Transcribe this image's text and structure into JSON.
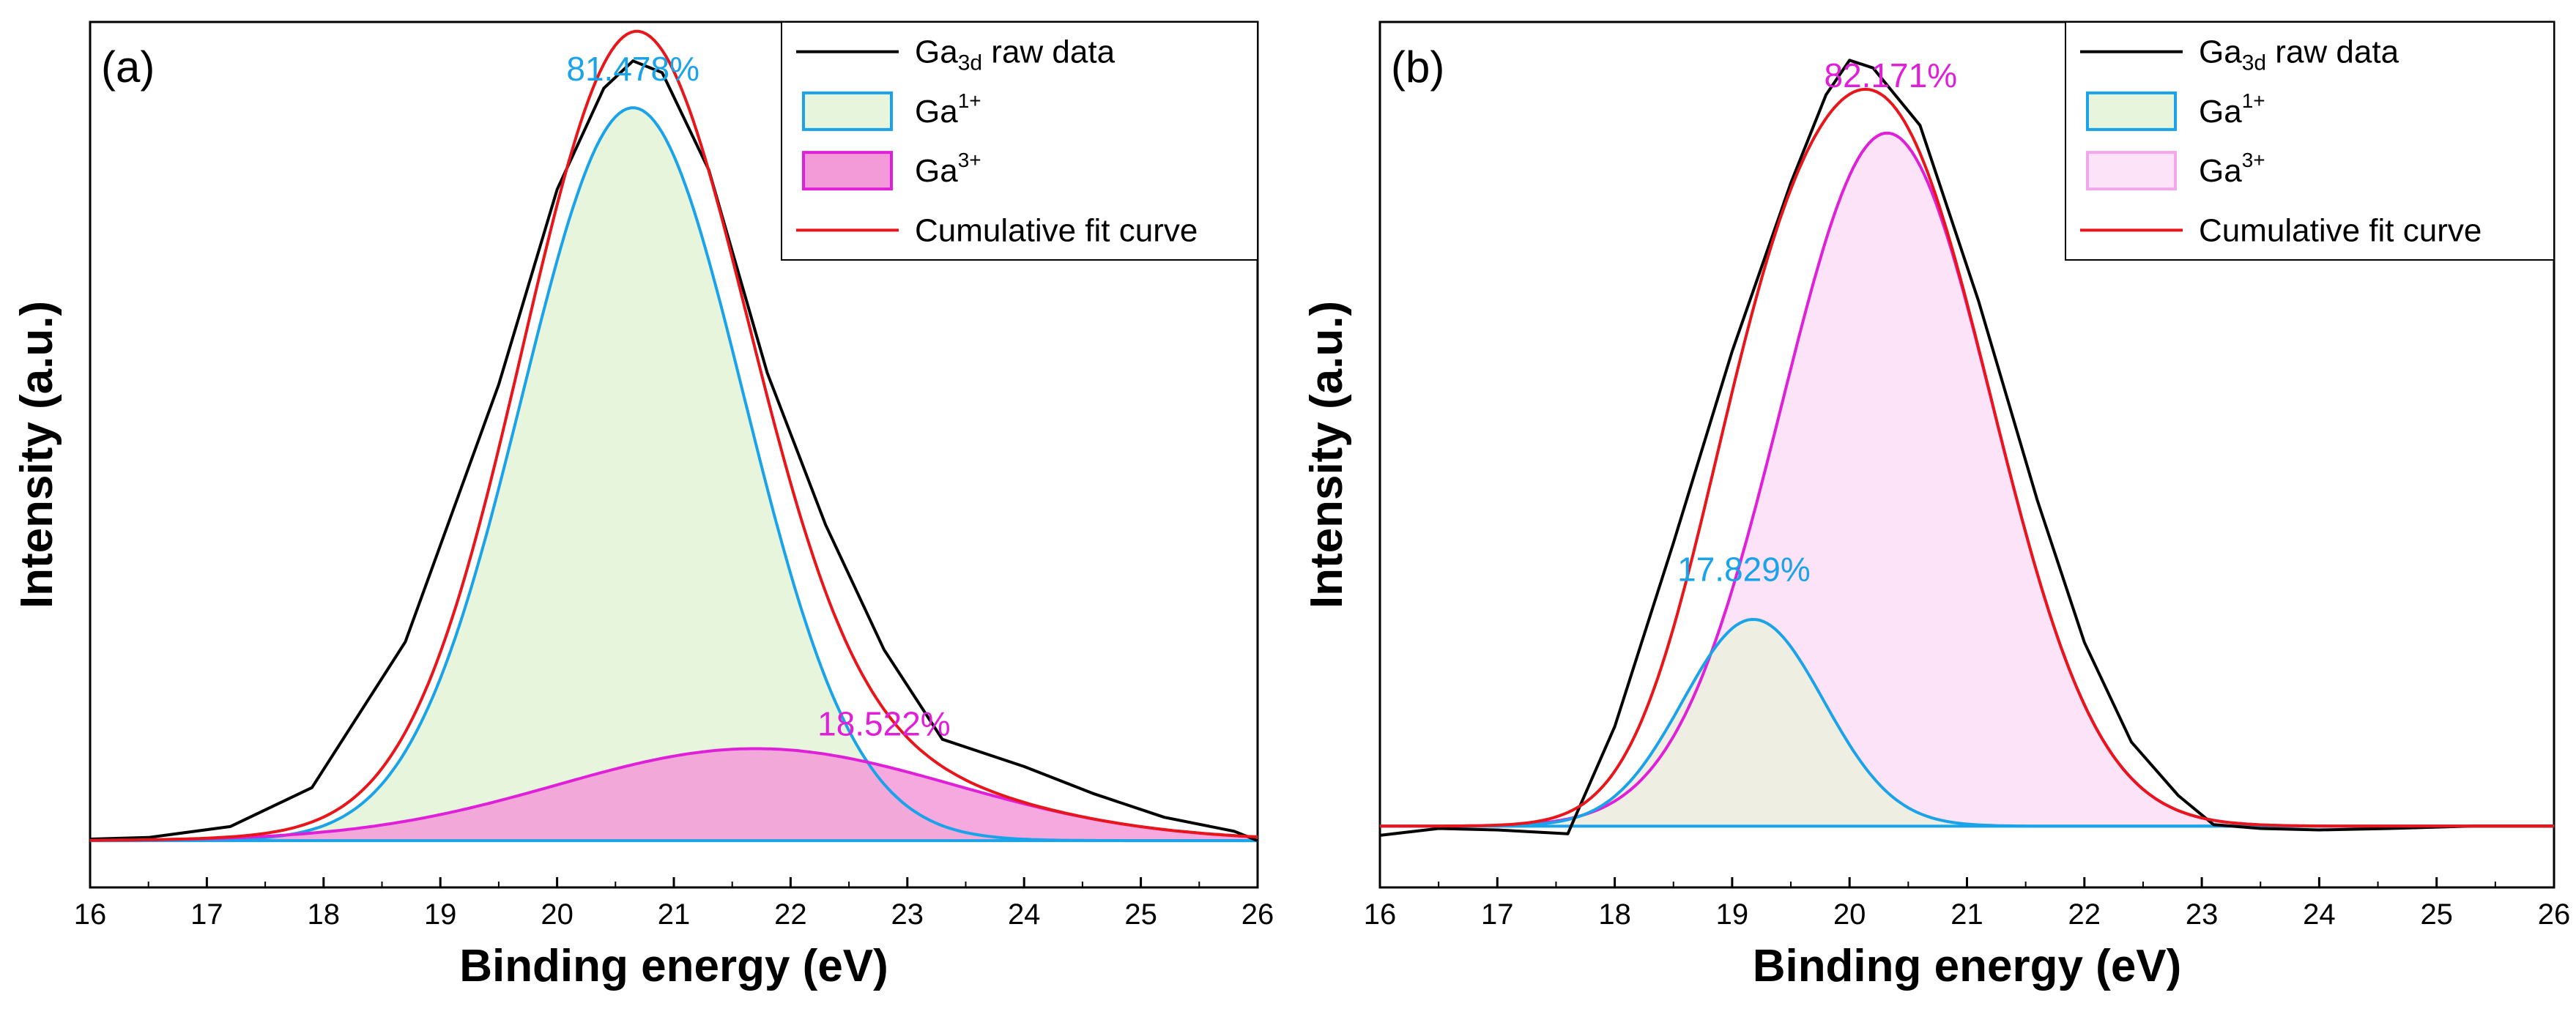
{
  "chart_data": [
    {
      "id": "a",
      "type": "line",
      "panel_label": "(a)",
      "xlabel": "Binding energy (eV)",
      "ylabel": "Intensity (a.u.)",
      "xlim": [
        16,
        26
      ],
      "ylim": [
        -0.06,
        1.05
      ],
      "xticks": [
        16,
        17,
        18,
        19,
        20,
        21,
        22,
        23,
        24,
        25,
        26
      ],
      "legend_position": "top-right",
      "legend": [
        {
          "key": "raw",
          "base": "Ga",
          "sub": "3d",
          "sup": "",
          "after": " raw data",
          "style": "line",
          "color": "#000000"
        },
        {
          "key": "ga1",
          "base": "Ga",
          "sub": "",
          "sup": "1+",
          "after": "",
          "style": "box",
          "edge": "#1aa3e8",
          "fill": "#e6f5dc"
        },
        {
          "key": "ga3",
          "base": "Ga",
          "sub": "",
          "sup": "3+",
          "after": "",
          "style": "box",
          "edge": "#e020d8",
          "fill": "#f39ad8"
        },
        {
          "key": "fit",
          "base": "Cumulative fit curve",
          "sub": "",
          "sup": "",
          "after": "",
          "style": "line",
          "color": "#e8151b"
        }
      ],
      "annotations": [
        {
          "text": "81.478%",
          "x": 20.65,
          "y": 0.975,
          "color": "#1aa3e8"
        },
        {
          "text": "18.522%",
          "x": 22.8,
          "y": 0.135,
          "color": "#e020d8"
        }
      ],
      "baseline": 0.0,
      "peaks": [
        {
          "name": "Ga1+",
          "center": 20.65,
          "height": 0.94,
          "sigma": 0.95,
          "fill": "#e6f5dc",
          "edge": "#1aa3e8",
          "fill_opacity": 1.0
        },
        {
          "name": "Ga3+",
          "center": 21.7,
          "height": 0.118,
          "sigma": 1.7,
          "fill": "#f39ad8",
          "edge": "#e020d8",
          "fill_opacity": 0.85
        }
      ],
      "series": [
        {
          "name": "Ga3d raw data",
          "color": "#000000",
          "x": [
            16.0,
            16.5,
            17.2,
            17.9,
            18.7,
            19.5,
            20.0,
            20.4,
            20.65,
            20.9,
            21.3,
            21.8,
            22.3,
            22.8,
            23.3,
            24.0,
            24.6,
            25.2,
            25.8,
            26.0
          ],
          "y": [
            0.002,
            0.004,
            0.018,
            0.068,
            0.255,
            0.585,
            0.835,
            0.965,
            1.0,
            0.985,
            0.86,
            0.6,
            0.405,
            0.245,
            0.13,
            0.095,
            0.06,
            0.03,
            0.012,
            0.0
          ]
        },
        {
          "name": "Cumulative fit curve",
          "color": "#e8151b",
          "computed": "sum_of_peaks"
        }
      ]
    },
    {
      "id": "b",
      "type": "line",
      "panel_label": "(b)",
      "xlabel": "Binding energy (eV)",
      "ylabel": "Intensity (a.u.)",
      "xlim": [
        16,
        26
      ],
      "ylim": [
        -0.08,
        1.05
      ],
      "xticks": [
        16,
        17,
        18,
        19,
        20,
        21,
        22,
        23,
        24,
        25,
        26
      ],
      "legend_position": "top-right",
      "legend": [
        {
          "key": "raw",
          "base": "Ga",
          "sub": "3d",
          "sup": "",
          "after": " raw data",
          "style": "line",
          "color": "#000000"
        },
        {
          "key": "ga1",
          "base": "Ga",
          "sub": "",
          "sup": "1+",
          "after": "",
          "style": "box",
          "edge": "#1aa3e8",
          "fill": "#e6f5dc"
        },
        {
          "key": "ga3",
          "base": "Ga",
          "sub": "",
          "sup": "3+",
          "after": "",
          "style": "box",
          "edge": "#f2a6ec",
          "fill": "#fde3f8"
        },
        {
          "key": "fit",
          "base": "Cumulative fit curve",
          "sub": "",
          "sup": "",
          "after": "",
          "style": "line",
          "color": "#e8151b"
        }
      ],
      "annotations": [
        {
          "text": "82.171%",
          "x": 20.35,
          "y": 0.965,
          "color": "#e020d8"
        },
        {
          "text": "17.829%",
          "x": 19.1,
          "y": 0.32,
          "color": "#1aa3e8"
        }
      ],
      "baseline": 0.0,
      "peaks": [
        {
          "name": "Ga3+",
          "center": 20.32,
          "height": 0.905,
          "sigma": 0.9,
          "fill": "#fde3f8",
          "edge": "#e020d8",
          "fill_opacity": 1.0
        },
        {
          "name": "Ga1+",
          "center": 19.18,
          "height": 0.27,
          "sigma": 0.6,
          "fill": "#efeee2",
          "edge": "#1aa3e8",
          "fill_opacity": 1.0
        }
      ],
      "series": [
        {
          "name": "Ga3d raw data",
          "color": "#000000",
          "x": [
            16.0,
            16.5,
            17.0,
            17.6,
            18.0,
            18.5,
            19.0,
            19.5,
            19.8,
            20.0,
            20.2,
            20.6,
            21.1,
            21.6,
            22.0,
            22.4,
            22.8,
            23.1,
            23.5,
            24.0,
            24.6,
            25.3,
            26.0
          ],
          "y": [
            -0.012,
            -0.003,
            -0.005,
            -0.01,
            0.13,
            0.37,
            0.62,
            0.84,
            0.955,
            1.0,
            0.99,
            0.915,
            0.685,
            0.425,
            0.24,
            0.11,
            0.04,
            0.002,
            -0.003,
            -0.005,
            -0.003,
            0.0,
            0.0
          ]
        },
        {
          "name": "Cumulative fit curve",
          "color": "#e8151b",
          "computed": "sum_of_peaks"
        }
      ]
    }
  ]
}
